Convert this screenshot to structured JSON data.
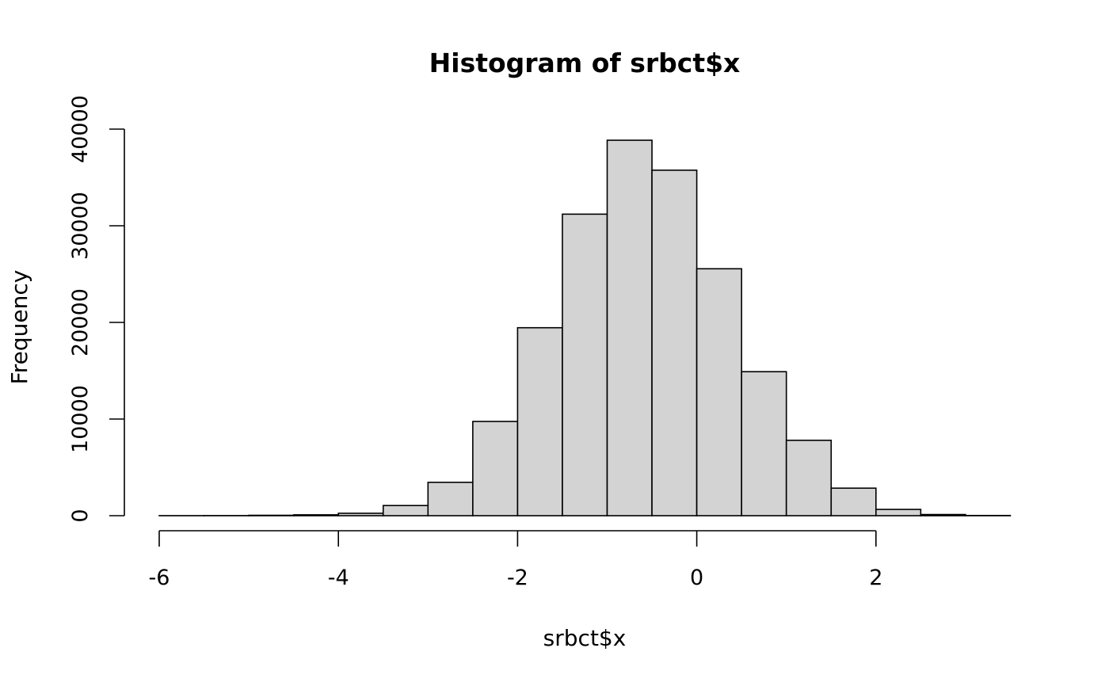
{
  "chart_data": {
    "type": "bar",
    "title": "Histogram of srbct$x",
    "xlabel": "srbct$x",
    "ylabel": "Frequency",
    "xlim": [
      -6,
      3.5
    ],
    "ylim": [
      0,
      40000
    ],
    "x_ticks": [
      -6,
      -4,
      -2,
      0,
      2
    ],
    "x_tick_labels": [
      "-6",
      "-4",
      "-2",
      "0",
      "2"
    ],
    "y_ticks": [
      0,
      10000,
      20000,
      30000,
      40000
    ],
    "y_tick_labels": [
      "0",
      "10000",
      "20000",
      "30000",
      "40000"
    ],
    "grid": false,
    "bins": [
      {
        "x0": -6.0,
        "x1": -5.5,
        "count": 5
      },
      {
        "x0": -5.5,
        "x1": -5.0,
        "count": 10
      },
      {
        "x0": -5.0,
        "x1": -4.5,
        "count": 40
      },
      {
        "x0": -4.5,
        "x1": -4.0,
        "count": 90
      },
      {
        "x0": -4.0,
        "x1": -3.5,
        "count": 250
      },
      {
        "x0": -3.5,
        "x1": -3.0,
        "count": 1050
      },
      {
        "x0": -3.0,
        "x1": -2.5,
        "count": 3450
      },
      {
        "x0": -2.5,
        "x1": -2.0,
        "count": 9750
      },
      {
        "x0": -2.0,
        "x1": -1.5,
        "count": 19450
      },
      {
        "x0": -1.5,
        "x1": -1.0,
        "count": 31200
      },
      {
        "x0": -1.0,
        "x1": -0.5,
        "count": 38850
      },
      {
        "x0": -0.5,
        "x1": 0.0,
        "count": 35750
      },
      {
        "x0": 0.0,
        "x1": 0.5,
        "count": 25550
      },
      {
        "x0": 0.5,
        "x1": 1.0,
        "count": 14900
      },
      {
        "x0": 1.0,
        "x1": 1.5,
        "count": 7800
      },
      {
        "x0": 1.5,
        "x1": 2.0,
        "count": 2850
      },
      {
        "x0": 2.0,
        "x1": 2.5,
        "count": 650
      },
      {
        "x0": 2.5,
        "x1": 3.0,
        "count": 120
      },
      {
        "x0": 3.0,
        "x1": 3.5,
        "count": 20
      }
    ]
  }
}
